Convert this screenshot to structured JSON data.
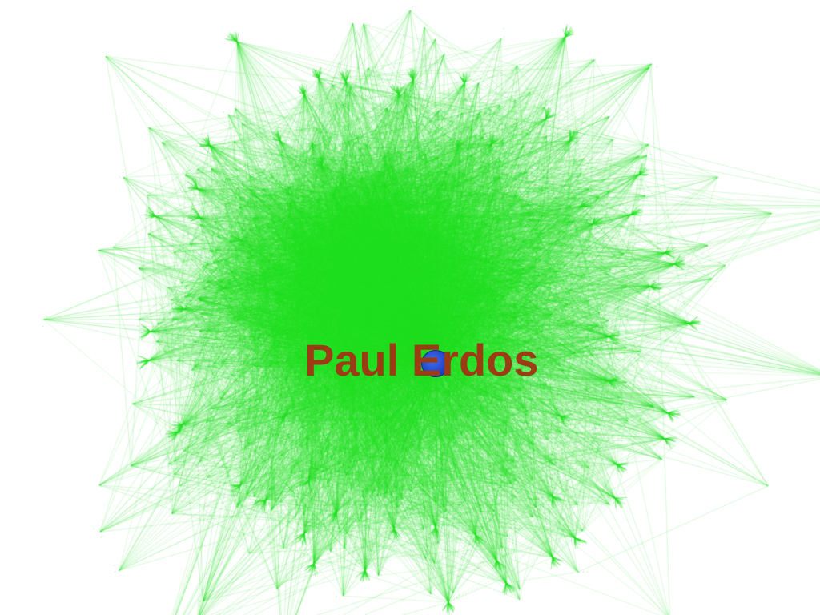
{
  "graph": {
    "hub_label": "Paul Erdos",
    "minor_labels": [
      "",
      ""
    ],
    "colors": {
      "background": "#ffffff",
      "edges": "#22e022",
      "hub_node": "#2447c9",
      "hub_label": "#9c3b14"
    }
  }
}
